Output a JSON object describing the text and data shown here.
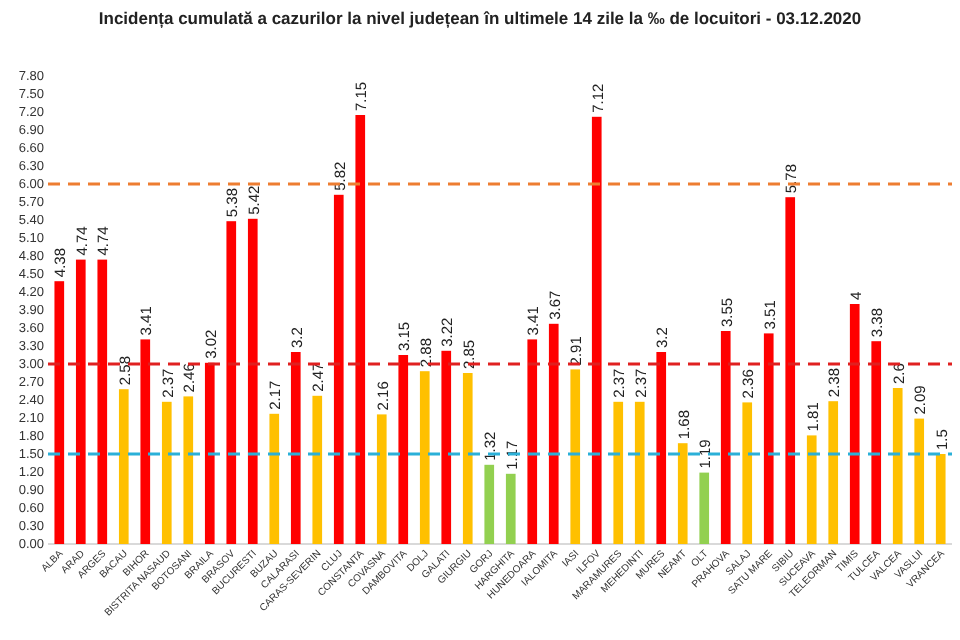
{
  "chart_data": {
    "type": "bar",
    "title": "Incidența cumulată a cazurilor la nivel județean în ultimele 14 zile la ‰ de locuitori - 03.12.2020",
    "categories": [
      "ALBA",
      "ARAD",
      "ARGES",
      "BACAU",
      "BIHOR",
      "BISTRITA NASAUD",
      "BOTOSANI",
      "BRAILA",
      "BRASOV",
      "BUCURESTI",
      "BUZAU",
      "CALARASI",
      "CARAS-SEVERIN",
      "CLUJ",
      "CONSTANTA",
      "COVASNA",
      "DAMBOVITA",
      "DOLJ",
      "GALATI",
      "GIURGIU",
      "GORJ",
      "HARGHITA",
      "HUNEDOARA",
      "IALOMITA",
      "IASI",
      "ILFOV",
      "MARAMURES",
      "MEHEDINTI",
      "MURES",
      "NEAMT",
      "OLT",
      "PRAHOVA",
      "SALAJ",
      "SATU MARE",
      "SIBIU",
      "SUCEAVA",
      "TELEORMAN",
      "TIMIS",
      "TULCEA",
      "VALCEA",
      "VASLUI",
      "VRANCEA"
    ],
    "values": [
      4.38,
      4.74,
      4.74,
      2.58,
      3.41,
      2.37,
      2.46,
      3.02,
      5.38,
      5.42,
      2.17,
      3.2,
      2.47,
      5.82,
      7.15,
      2.16,
      3.15,
      2.88,
      3.22,
      2.85,
      1.32,
      1.17,
      3.41,
      3.67,
      2.91,
      7.12,
      2.37,
      2.37,
      3.2,
      1.68,
      1.19,
      3.55,
      2.36,
      3.51,
      5.78,
      1.81,
      2.38,
      4,
      3.38,
      2.6,
      2.09,
      1.5
    ],
    "colors": [
      "#ff0000",
      "#ff0000",
      "#ff0000",
      "#ffc000",
      "#ff0000",
      "#ffc000",
      "#ffc000",
      "#ff0000",
      "#ff0000",
      "#ff0000",
      "#ffc000",
      "#ff0000",
      "#ffc000",
      "#ff0000",
      "#ff0000",
      "#ffc000",
      "#ff0000",
      "#ffc000",
      "#ff0000",
      "#ffc000",
      "#92d050",
      "#92d050",
      "#ff0000",
      "#ff0000",
      "#ffc000",
      "#ff0000",
      "#ffc000",
      "#ffc000",
      "#ff0000",
      "#ffc000",
      "#92d050",
      "#ff0000",
      "#ffc000",
      "#ff0000",
      "#ff0000",
      "#ffc000",
      "#ffc000",
      "#ff0000",
      "#ff0000",
      "#ffc000",
      "#ffc000",
      "#ffc000"
    ],
    "ylim": [
      0,
      7.8
    ],
    "yticks": [
      {
        "value": 0,
        "label": "0.00"
      },
      {
        "value": 0.3,
        "label": "0.30"
      },
      {
        "value": 0.6,
        "label": "0.60"
      },
      {
        "value": 0.9,
        "label": "0.90"
      },
      {
        "value": 1.2,
        "label": "1.20"
      },
      {
        "value": 1.5,
        "label": "1.50"
      },
      {
        "value": 1.8,
        "label": "1.80"
      },
      {
        "value": 2.1,
        "label": "2.10"
      },
      {
        "value": 2.4,
        "label": "2.40"
      },
      {
        "value": 2.7,
        "label": "2.70"
      },
      {
        "value": 3,
        "label": "3.00"
      },
      {
        "value": 3.3,
        "label": "3.30"
      },
      {
        "value": 3.6,
        "label": "3.60"
      },
      {
        "value": 3.9,
        "label": "3.90"
      },
      {
        "value": 4.2,
        "label": "4.20"
      },
      {
        "value": 4.5,
        "label": "4.50"
      },
      {
        "value": 4.8,
        "label": "4.80"
      },
      {
        "value": 5.1,
        "label": "5.10"
      },
      {
        "value": 5.4,
        "label": "5.40"
      },
      {
        "value": 5.7,
        "label": "5.70"
      },
      {
        "value": 6,
        "label": "6.00"
      },
      {
        "value": 6.3,
        "label": "6.30"
      },
      {
        "value": 6.6,
        "label": "6.60"
      },
      {
        "value": 6.9,
        "label": "6.90"
      },
      {
        "value": 7.2,
        "label": "7.20"
      },
      {
        "value": 7.5,
        "label": "7.50"
      },
      {
        "value": 7.8,
        "label": "7.80"
      }
    ],
    "ref_lines": [
      {
        "axis": "y",
        "value": 6,
        "color": "#ed7d31",
        "line_style": "dashed"
      },
      {
        "axis": "y",
        "value": 3,
        "color": "#e02020",
        "line_style": "dashed"
      },
      {
        "axis": "y",
        "value": 1.5,
        "color": "#2ab0d8",
        "line_style": "dashed"
      }
    ],
    "data_labels": true
  }
}
